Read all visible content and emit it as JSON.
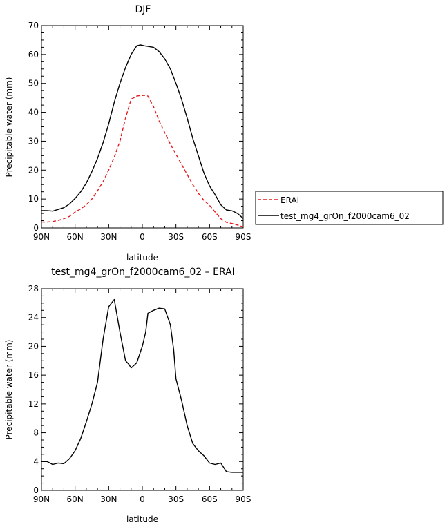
{
  "chart_data": [
    {
      "type": "line",
      "title": "DJF",
      "xlabel": "latitude",
      "ylabel": "Precipitable water (mm)",
      "xlim": [
        90,
        -90
      ],
      "ylim": [
        0,
        70
      ],
      "xticks": [
        90,
        60,
        30,
        0,
        -30,
        -60,
        -90
      ],
      "xtick_labels": [
        "90N",
        "60N",
        "30N",
        "0",
        "30S",
        "60S",
        "90S"
      ],
      "yticks": [
        0,
        10,
        20,
        30,
        40,
        50,
        60,
        70
      ],
      "ytick_labels": [
        "0",
        "10",
        "20",
        "30",
        "40",
        "50",
        "60",
        "70"
      ],
      "legend_position": "right",
      "x": [
        90,
        85,
        80,
        75,
        70,
        65,
        60,
        55,
        50,
        45,
        40,
        35,
        30,
        25,
        20,
        15,
        10,
        5,
        2,
        0,
        -2,
        -5,
        -10,
        -15,
        -20,
        -25,
        -30,
        -35,
        -40,
        -45,
        -50,
        -55,
        -60,
        -65,
        -70,
        -75,
        -80,
        -85,
        -90
      ],
      "series": [
        {
          "name": "ERAI",
          "color": "#e41a1c",
          "dash": "dashed",
          "values": [
            2.0,
            2.0,
            2.2,
            2.6,
            3.2,
            4.0,
            5.5,
            6.6,
            8.0,
            10.0,
            12.8,
            16.0,
            20.0,
            24.5,
            30.0,
            38.0,
            44.5,
            45.6,
            45.8,
            45.8,
            45.9,
            45.6,
            42.0,
            37.0,
            33.0,
            29.0,
            25.5,
            22.0,
            18.5,
            15.0,
            12.0,
            9.5,
            7.8,
            5.5,
            3.2,
            1.9,
            1.5,
            1.0,
            0.3
          ]
        },
        {
          "name": "test_mg4_grOn_f2000cam6_02",
          "color": "#000000",
          "dash": "solid",
          "values": [
            6.0,
            6.0,
            5.8,
            6.4,
            7.0,
            8.3,
            10.2,
            12.5,
            15.5,
            19.5,
            24.0,
            29.5,
            36.0,
            43.5,
            50.0,
            55.5,
            60.0,
            63.0,
            63.3,
            63.2,
            63.0,
            62.8,
            62.5,
            61.0,
            58.5,
            55.0,
            50.0,
            44.5,
            38.0,
            31.0,
            25.0,
            19.0,
            14.5,
            11.5,
            8.0,
            6.2,
            5.9,
            5.0,
            3.3
          ]
        }
      ]
    },
    {
      "type": "line",
      "title": "test_mg4_grOn_f2000cam6_02 – ERAI",
      "xlabel": "latitude",
      "ylabel": "Precipitable water (mm)",
      "xlim": [
        90,
        -90
      ],
      "ylim": [
        0,
        28
      ],
      "xticks": [
        90,
        60,
        30,
        0,
        -30,
        -60,
        -90
      ],
      "xtick_labels": [
        "90N",
        "60N",
        "30N",
        "0",
        "30S",
        "60S",
        "90S"
      ],
      "yticks": [
        0,
        4,
        8,
        12,
        16,
        20,
        24,
        28
      ],
      "ytick_labels": [
        "0",
        "4",
        "8",
        "12",
        "16",
        "20",
        "24",
        "28"
      ],
      "x": [
        90,
        85,
        80,
        75,
        70,
        65,
        60,
        55,
        50,
        45,
        40,
        35,
        30,
        25,
        20,
        15,
        12,
        10,
        5,
        0,
        -3,
        -5,
        -10,
        -15,
        -20,
        -25,
        -28,
        -30,
        -35,
        -40,
        -45,
        -50,
        -55,
        -60,
        -65,
        -70,
        -75,
        -80,
        -85,
        -90
      ],
      "series": [
        {
          "color": "#000000",
          "dash": "solid",
          "values": [
            4.0,
            4.0,
            3.6,
            3.8,
            3.7,
            4.4,
            5.5,
            7.2,
            9.5,
            12.0,
            15.0,
            21.0,
            25.5,
            26.5,
            22.0,
            18.0,
            17.5,
            17.0,
            17.7,
            20.0,
            22.0,
            24.6,
            25.0,
            25.3,
            25.2,
            23.0,
            19.5,
            15.5,
            12.5,
            9.0,
            6.5,
            5.5,
            4.8,
            3.8,
            3.6,
            3.8,
            2.6,
            2.5,
            2.5,
            2.5
          ]
        }
      ]
    }
  ]
}
